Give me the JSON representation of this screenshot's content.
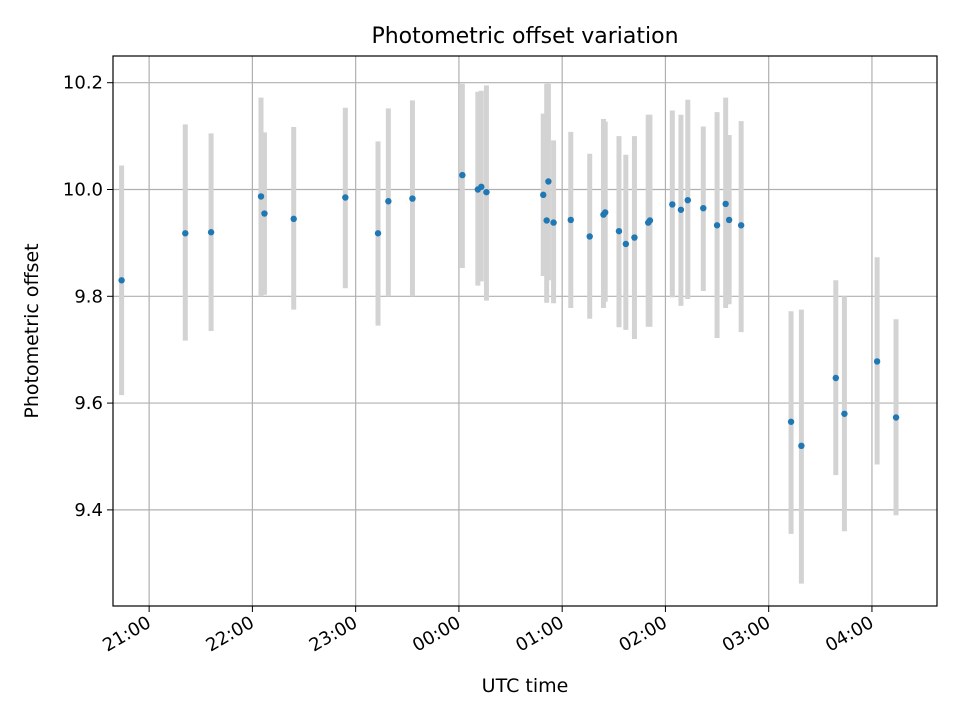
{
  "chart_data": {
    "type": "scatter",
    "title": "Photometric offset variation",
    "xlabel": "UTC time",
    "ylabel": "Photometric offset",
    "x_tick_labels": [
      "21:00",
      "22:00",
      "23:00",
      "00:00",
      "01:00",
      "02:00",
      "03:00",
      "04:00"
    ],
    "x_tick_hours": [
      21,
      22,
      23,
      24,
      25,
      26,
      27,
      28
    ],
    "y_tick_labels": [
      "9.4",
      "9.6",
      "9.8",
      "10.0",
      "10.2"
    ],
    "y_tick_values": [
      9.4,
      9.6,
      9.8,
      10.0,
      10.2
    ],
    "xlim_hours": [
      20.65,
      28.63
    ],
    "ylim": [
      9.22,
      10.25
    ],
    "grid": true,
    "colors": {
      "point": "#1f77b4",
      "errorbar": "#d3d3d3",
      "grid": "#b0b0b0"
    },
    "points": [
      {
        "t": "20:44",
        "y": 9.83,
        "err_lo": 9.615,
        "err_hi": 10.045
      },
      {
        "t": "21:21",
        "y": 9.918,
        "err_lo": 9.717,
        "err_hi": 10.122
      },
      {
        "t": "21:36",
        "y": 9.92,
        "err_lo": 9.735,
        "err_hi": 10.105
      },
      {
        "t": "22:05",
        "y": 9.987,
        "err_lo": 9.8,
        "err_hi": 10.172
      },
      {
        "t": "22:07",
        "y": 9.955,
        "err_lo": 9.803,
        "err_hi": 10.107
      },
      {
        "t": "22:24",
        "y": 9.945,
        "err_lo": 9.775,
        "err_hi": 10.117
      },
      {
        "t": "22:54",
        "y": 9.985,
        "err_lo": 9.815,
        "err_hi": 10.153
      },
      {
        "t": "23:13",
        "y": 9.918,
        "err_lo": 9.745,
        "err_hi": 10.09
      },
      {
        "t": "23:19",
        "y": 9.978,
        "err_lo": 9.8,
        "err_hi": 10.152
      },
      {
        "t": "23:33",
        "y": 9.983,
        "err_lo": 9.8,
        "err_hi": 10.167
      },
      {
        "t": "00:02",
        "y": 10.027,
        "err_lo": 9.853,
        "err_hi": 10.198
      },
      {
        "t": "00:11",
        "y": 10.0,
        "err_lo": 9.82,
        "err_hi": 10.183
      },
      {
        "t": "00:13",
        "y": 10.005,
        "err_lo": 9.828,
        "err_hi": 10.185
      },
      {
        "t": "00:16",
        "y": 9.995,
        "err_lo": 9.792,
        "err_hi": 10.195
      },
      {
        "t": "00:49",
        "y": 9.99,
        "err_lo": 9.838,
        "err_hi": 10.142
      },
      {
        "t": "00:51",
        "y": 9.942,
        "err_lo": 9.788,
        "err_hi": 10.198
      },
      {
        "t": "00:52",
        "y": 10.015,
        "err_lo": 9.83,
        "err_hi": 10.198
      },
      {
        "t": "00:55",
        "y": 9.938,
        "err_lo": 9.787,
        "err_hi": 10.092
      },
      {
        "t": "01:05",
        "y": 9.943,
        "err_lo": 9.778,
        "err_hi": 10.108
      },
      {
        "t": "01:16",
        "y": 9.912,
        "err_lo": 9.758,
        "err_hi": 10.067
      },
      {
        "t": "01:24",
        "y": 9.953,
        "err_lo": 9.778,
        "err_hi": 10.132
      },
      {
        "t": "01:25",
        "y": 9.957,
        "err_lo": 9.79,
        "err_hi": 10.127
      },
      {
        "t": "01:33",
        "y": 9.922,
        "err_lo": 9.742,
        "err_hi": 10.1
      },
      {
        "t": "01:37",
        "y": 9.898,
        "err_lo": 9.737,
        "err_hi": 10.065
      },
      {
        "t": "01:42",
        "y": 9.91,
        "err_lo": 9.72,
        "err_hi": 10.1
      },
      {
        "t": "01:50",
        "y": 9.938,
        "err_lo": 9.743,
        "err_hi": 10.14
      },
      {
        "t": "01:51",
        "y": 9.942,
        "err_lo": 9.743,
        "err_hi": 10.14
      },
      {
        "t": "02:04",
        "y": 9.972,
        "err_lo": 9.798,
        "err_hi": 10.148
      },
      {
        "t": "02:09",
        "y": 9.962,
        "err_lo": 9.782,
        "err_hi": 10.14
      },
      {
        "t": "02:13",
        "y": 9.98,
        "err_lo": 9.795,
        "err_hi": 10.168
      },
      {
        "t": "02:22",
        "y": 9.965,
        "err_lo": 9.81,
        "err_hi": 10.118
      },
      {
        "t": "02:30",
        "y": 9.933,
        "err_lo": 9.722,
        "err_hi": 10.145
      },
      {
        "t": "02:35",
        "y": 9.973,
        "err_lo": 9.778,
        "err_hi": 10.172
      },
      {
        "t": "02:37",
        "y": 9.943,
        "err_lo": 9.785,
        "err_hi": 10.102
      },
      {
        "t": "02:44",
        "y": 9.933,
        "err_lo": 9.733,
        "err_hi": 10.128
      },
      {
        "t": "03:13",
        "y": 9.565,
        "err_lo": 9.355,
        "err_hi": 9.772
      },
      {
        "t": "03:19",
        "y": 9.52,
        "err_lo": 9.262,
        "err_hi": 9.775
      },
      {
        "t": "03:39",
        "y": 9.647,
        "err_lo": 9.465,
        "err_hi": 9.83
      },
      {
        "t": "03:44",
        "y": 9.58,
        "err_lo": 9.36,
        "err_hi": 9.8
      },
      {
        "t": "04:03",
        "y": 9.678,
        "err_lo": 9.485,
        "err_hi": 9.873
      },
      {
        "t": "04:14",
        "y": 9.573,
        "err_lo": 9.39,
        "err_hi": 9.757
      }
    ]
  }
}
